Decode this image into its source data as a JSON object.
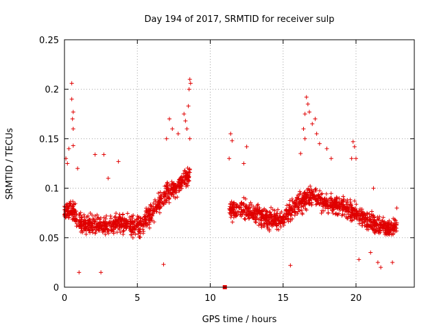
{
  "chart_data": {
    "type": "scatter",
    "title": "Day 194 of 2017, SRMTID for receiver sulp",
    "xlabel": "GPS time / hours",
    "ylabel": "SRMTID / TECUs",
    "xlim": [
      0,
      24
    ],
    "ylim": [
      0,
      0.25
    ],
    "xticks": [
      0,
      5,
      10,
      15,
      20
    ],
    "xtick_labels": [
      "0",
      "5",
      "10",
      "15",
      "20"
    ],
    "yticks": [
      0,
      0.05,
      0.1,
      0.15,
      0.2,
      0.25
    ],
    "ytick_labels": [
      "0",
      "0.05",
      "0.1",
      "0.15",
      "0.2",
      "0.25"
    ],
    "grid": true,
    "marker": "+",
    "series": [
      {
        "name": "SRMTID",
        "color": "#e00000",
        "segments": [
          {
            "x_start": 0.0,
            "x_end": 8.6,
            "anchors": [
              [
                0.0,
                0.075
              ],
              [
                0.5,
                0.078
              ],
              [
                1.0,
                0.065
              ],
              [
                2.0,
                0.063
              ],
              [
                3.0,
                0.062
              ],
              [
                4.0,
                0.066
              ],
              [
                5.0,
                0.06
              ],
              [
                6.0,
                0.075
              ],
              [
                7.0,
                0.095
              ],
              [
                8.0,
                0.105
              ],
              [
                8.6,
                0.115
              ]
            ]
          },
          {
            "x_start": 11.3,
            "x_end": 22.8,
            "anchors": [
              [
                11.3,
                0.078
              ],
              [
                12.0,
                0.08
              ],
              [
                13.0,
                0.075
              ],
              [
                14.0,
                0.068
              ],
              [
                15.0,
                0.07
              ],
              [
                16.0,
                0.085
              ],
              [
                17.0,
                0.092
              ],
              [
                18.0,
                0.085
              ],
              [
                19.0,
                0.082
              ],
              [
                20.0,
                0.075
              ],
              [
                21.0,
                0.065
              ],
              [
                22.0,
                0.06
              ],
              [
                22.8,
                0.062
              ]
            ]
          }
        ],
        "highlights": [
          [
            0.5,
            0.206
          ],
          [
            0.5,
            0.19
          ],
          [
            0.6,
            0.177
          ],
          [
            0.55,
            0.17
          ],
          [
            0.6,
            0.16
          ],
          [
            0.1,
            0.13
          ],
          [
            0.2,
            0.125
          ],
          [
            0.3,
            0.14
          ],
          [
            0.6,
            0.143
          ],
          [
            0.9,
            0.12
          ],
          [
            1.0,
            0.015
          ],
          [
            2.5,
            0.015
          ],
          [
            2.1,
            0.134
          ],
          [
            2.7,
            0.134
          ],
          [
            3.0,
            0.11
          ],
          [
            3.7,
            0.127
          ],
          [
            6.8,
            0.023
          ],
          [
            7.0,
            0.15
          ],
          [
            7.2,
            0.17
          ],
          [
            7.4,
            0.16
          ],
          [
            7.8,
            0.155
          ],
          [
            8.2,
            0.175
          ],
          [
            8.3,
            0.168
          ],
          [
            8.5,
            0.183
          ],
          [
            8.55,
            0.2
          ],
          [
            8.6,
            0.21
          ],
          [
            8.65,
            0.206
          ],
          [
            8.4,
            0.16
          ],
          [
            8.6,
            0.15
          ],
          [
            11.4,
            0.155
          ],
          [
            11.5,
            0.148
          ],
          [
            11.3,
            0.13
          ],
          [
            12.3,
            0.125
          ],
          [
            12.5,
            0.142
          ],
          [
            16.2,
            0.135
          ],
          [
            16.5,
            0.175
          ],
          [
            16.6,
            0.192
          ],
          [
            16.7,
            0.185
          ],
          [
            16.8,
            0.177
          ],
          [
            16.4,
            0.16
          ],
          [
            16.5,
            0.15
          ],
          [
            17.0,
            0.165
          ],
          [
            17.2,
            0.17
          ],
          [
            17.3,
            0.155
          ],
          [
            17.5,
            0.145
          ],
          [
            18.0,
            0.14
          ],
          [
            18.3,
            0.13
          ],
          [
            19.8,
            0.147
          ],
          [
            19.9,
            0.142
          ],
          [
            20.0,
            0.13
          ],
          [
            19.7,
            0.13
          ],
          [
            15.5,
            0.022
          ],
          [
            20.2,
            0.028
          ],
          [
            21.0,
            0.035
          ],
          [
            21.5,
            0.025
          ],
          [
            21.7,
            0.02
          ],
          [
            22.5,
            0.025
          ],
          [
            22.8,
            0.08
          ],
          [
            21.2,
            0.1
          ]
        ],
        "point_count": 1900
      },
      {
        "name": "zero-value marker",
        "color": "#e00000",
        "marker": "square",
        "points": [
          [
            11.0,
            0.0
          ]
        ]
      }
    ]
  }
}
